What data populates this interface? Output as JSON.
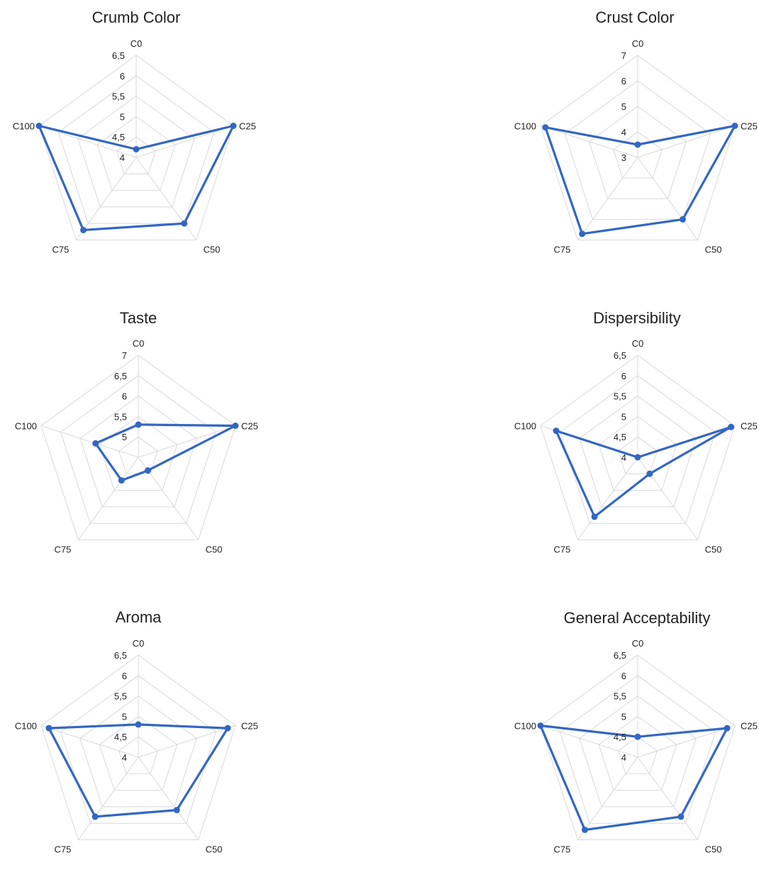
{
  "colors": {
    "series": "#3366c4",
    "grid": "#d9d9d9",
    "text": "#222222"
  },
  "chart_data": [
    {
      "type": "radar",
      "title": "Crumb Color",
      "categories": [
        "C0",
        "C25",
        "C50",
        "C75",
        "C100"
      ],
      "ticks": [
        "4",
        "4,5",
        "5",
        "5,5",
        "6",
        "6,5"
      ],
      "range": [
        4,
        6.5
      ],
      "grid_levels": [
        4,
        4.5,
        5,
        5.5,
        6,
        6.5
      ],
      "series": [
        {
          "values": [
            4.2,
            6.5,
            6.0,
            6.2,
            6.5
          ]
        }
      ]
    },
    {
      "type": "radar",
      "title": "Crust Color",
      "categories": [
        "C0",
        "C25",
        "C50",
        "C75",
        "C100"
      ],
      "ticks": [
        "3",
        "4",
        "5",
        "6",
        "7"
      ],
      "range": [
        3,
        7
      ],
      "grid_levels": [
        3,
        4,
        5,
        6,
        7
      ],
      "series": [
        {
          "values": [
            3.5,
            7.0,
            6.0,
            6.7,
            6.8
          ]
        }
      ]
    },
    {
      "type": "radar",
      "title": "Taste",
      "categories": [
        "C0",
        "C25",
        "C50",
        "C75",
        "C100"
      ],
      "ticks": [
        "5",
        "5,5",
        "6",
        "6,5",
        "7"
      ],
      "range": [
        4.5,
        7
      ],
      "grid_levels": [
        5,
        5.5,
        6,
        6.5,
        7
      ],
      "series": [
        {
          "values": [
            5.3,
            7.0,
            4.9,
            5.2,
            5.6
          ]
        }
      ]
    },
    {
      "type": "radar",
      "title": "Dispersibility",
      "categories": [
        "C0",
        "C25",
        "C50",
        "C75",
        "C100"
      ],
      "ticks": [
        "4",
        "4,5",
        "5",
        "5,5",
        "6",
        "6,5"
      ],
      "range": [
        4,
        6.5
      ],
      "grid_levels": [
        4,
        4.5,
        5,
        5.5,
        6,
        6.5
      ],
      "series": [
        {
          "values": [
            4.0,
            6.4,
            4.5,
            5.8,
            6.1
          ]
        }
      ]
    },
    {
      "type": "radar",
      "title": "Aroma",
      "categories": [
        "C0",
        "C25",
        "C50",
        "C75",
        "C100"
      ],
      "ticks": [
        "4",
        "4,5",
        "5",
        "5,5",
        "6",
        "6,5"
      ],
      "range": [
        4,
        6.5
      ],
      "grid_levels": [
        4,
        4.5,
        5,
        5.5,
        6,
        6.5
      ],
      "series": [
        {
          "values": [
            4.8,
            6.3,
            5.6,
            5.8,
            6.3
          ]
        }
      ]
    },
    {
      "type": "radar",
      "title": "General Acceptability",
      "categories": [
        "C0",
        "C25",
        "C50",
        "C75",
        "C100"
      ],
      "ticks": [
        "4",
        "4,5",
        "5",
        "5,5",
        "6",
        "6,5"
      ],
      "range": [
        4,
        6.5
      ],
      "grid_levels": [
        4,
        4.5,
        5,
        5.5,
        6,
        6.5
      ],
      "series": [
        {
          "values": [
            4.5,
            6.3,
            5.8,
            6.2,
            6.5
          ]
        }
      ]
    }
  ]
}
